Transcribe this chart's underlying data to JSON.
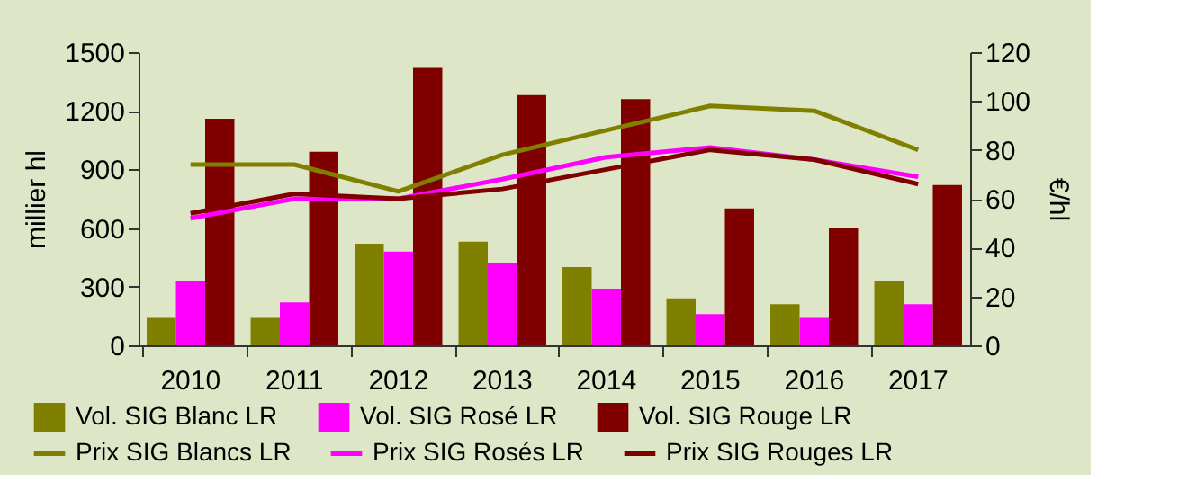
{
  "chart_data": {
    "type": "bar",
    "categories": [
      "2010",
      "2011",
      "2012",
      "2013",
      "2014",
      "2015",
      "2016",
      "2017"
    ],
    "ylabel": "millier hl",
    "y2label": "€/hl",
    "ylim": [
      0,
      1500
    ],
    "yticks": [
      0,
      300,
      600,
      900,
      1200,
      1500
    ],
    "y2lim": [
      0,
      120
    ],
    "y2ticks": [
      0,
      20,
      40,
      60,
      80,
      100,
      120
    ],
    "grid": false,
    "legend": "bottom",
    "series": [
      {
        "name": "Vol. SIG Blanc LR",
        "color": "#808000",
        "values": [
          140,
          140,
          520,
          530,
          400,
          240,
          210,
          330
        ]
      },
      {
        "name": "Vol. SIG Rosé LR",
        "color": "#ff00ff",
        "values": [
          330,
          220,
          480,
          420,
          290,
          160,
          140,
          210
        ]
      },
      {
        "name": "Vol. SIG Rouge LR",
        "color": "#800000",
        "values": [
          1160,
          990,
          1420,
          1280,
          1260,
          700,
          600,
          820
        ]
      },
      {
        "name": "Prix SIG Blancs LR",
        "type": "line",
        "axis": "y2",
        "color": "#808000",
        "values": [
          74,
          74,
          63,
          78,
          88,
          98,
          96,
          80
        ]
      },
      {
        "name": "Prix SIG Rosés LR",
        "type": "line",
        "axis": "y2",
        "color": "#ff00ff",
        "values": [
          52,
          60,
          60,
          68,
          77,
          81,
          76,
          69
        ]
      },
      {
        "name": "Prix SIG Rouges LR",
        "type": "line",
        "axis": "y2",
        "color": "#800000",
        "values": [
          54,
          62,
          60,
          64,
          72,
          80,
          76,
          66
        ]
      }
    ]
  }
}
